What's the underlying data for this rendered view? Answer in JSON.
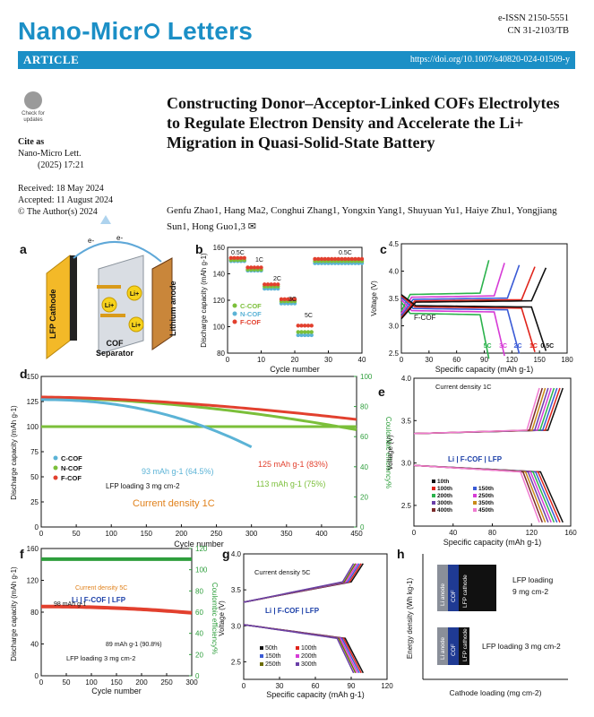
{
  "header": {
    "journal": "Nano-Micr",
    "journal_o": "o",
    "journal_rest": " Letters",
    "issn": "e-ISSN 2150-5551",
    "cn": "CN 31-2103/TB",
    "article": "ARTICLE",
    "doi": "https://doi.org/10.1007/s40820-024-01509-y"
  },
  "sidebar": {
    "check_line1": "Check for",
    "check_line2": "updates",
    "cite_label": "Cite as",
    "cite_journal": "Nano-Micro Lett.",
    "cite_year": "(2025) 17:21",
    "received": "Received: 18 May 2024",
    "accepted": "Accepted: 11 August 2024",
    "copyright": "© The Author(s) 2024"
  },
  "article": {
    "title": "Constructing Donor–Acceptor-Linked COFs Electrolytes to Regulate Electron Density and Accelerate the Li+ Migration in Quasi-Solid-State Battery",
    "authors": "Genfu Zhao1, Hang Ma2, Conghui Zhang1, Yongxin Yang1, Shuyuan Yu1, Haiye Zhu1, Yongjiang Sun1, Hong Guo1,3 ✉"
  },
  "colors": {
    "brand": "#1b8fc6",
    "c_cof": "#5bb3d6",
    "n_cof": "#7bbf3a",
    "f_cof": "#e2402e",
    "green": "#2e9e3c"
  },
  "panels": {
    "a": {
      "letter": "a",
      "cathode": "LFP Cathode",
      "anode": "Lithium anode",
      "separator1": "COF",
      "separator2": "Separator",
      "li": "Li+",
      "e": "e-"
    },
    "b": {
      "letter": "b",
      "ylabel": "Discharge capacity (mAh g-1)",
      "xlabel": "Cycle number",
      "rates": [
        "0.5C",
        "1C",
        "2C",
        "3C",
        "5C",
        "0.5C"
      ],
      "legend": [
        "C-COF",
        "N-COF",
        "F-COF"
      ],
      "yticks": [
        "80",
        "100",
        "120",
        "140",
        "160"
      ],
      "xticks": [
        "0",
        "10",
        "20",
        "30",
        "40"
      ]
    },
    "c": {
      "letter": "c",
      "ylabel": "Voltage (V)",
      "xlabel": "Specific capacity (mAh g-1)",
      "label": "F-COF",
      "rates": [
        "5C",
        "3C",
        "2C",
        "1C",
        "0.5C"
      ],
      "yticks": [
        "2.5",
        "3.0",
        "3.5",
        "4.0",
        "4.5"
      ],
      "xticks": [
        "0",
        "30",
        "60",
        "90",
        "120",
        "150",
        "180"
      ]
    },
    "d": {
      "letter": "d",
      "ylabel": "Discharge capacity (mAh g-1)",
      "ylabel2": "Coulombic efficiency%",
      "xlabel": "Cycle number",
      "legend": [
        "C-COF",
        "N-COF",
        "F-COF"
      ],
      "note1": "LFP loading 3 mg cm-2",
      "note2": "Current density 1C",
      "ann_c": "93 mAh g-1 (64.5%)",
      "ann_f": "125 mAh g-1 (83%)",
      "ann_n": "113 mAh g-1 (75%)",
      "yticks": [
        "0",
        "25",
        "50",
        "75",
        "100",
        "125",
        "150"
      ],
      "y2ticks": [
        "0",
        "20",
        "40",
        "60",
        "80",
        "100"
      ],
      "xticks": [
        "0",
        "50",
        "100",
        "150",
        "200",
        "250",
        "300",
        "350",
        "400",
        "450"
      ]
    },
    "e": {
      "letter": "e",
      "ylabel": "Voltage (V)",
      "xlabel": "Specific capacity (mAh g-1)",
      "title": "Current density 1C",
      "cell": "Li | F-COF | LFP",
      "legend": [
        "10th",
        "100th",
        "150th",
        "200th",
        "250th",
        "300th",
        "350th",
        "400th",
        "450th"
      ],
      "yticks": [
        "2.5",
        "3.0",
        "3.5",
        "4.0"
      ],
      "xticks": [
        "0",
        "40",
        "80",
        "120",
        "160"
      ]
    },
    "f": {
      "letter": "f",
      "ylabel": "Discharge capacity (mAh g-1)",
      "ylabel2": "Coulombic efficiency%",
      "xlabel": "Cycle number",
      "label": "Current density 5C",
      "cell": "Li | F-COF | LFP",
      "ann1": "98 mAh g-1",
      "ann2": "89 mAh g-1 (90.8%)",
      "note": "LFP loading 3 mg cm-2",
      "yticks": [
        "0",
        "40",
        "80",
        "120",
        "160"
      ],
      "y2ticks": [
        "0",
        "20",
        "40",
        "60",
        "80",
        "100",
        "120"
      ],
      "xticks": [
        "0",
        "50",
        "100",
        "150",
        "200",
        "250",
        "300"
      ]
    },
    "g": {
      "letter": "g",
      "ylabel": "Voltage (V)",
      "xlabel": "Specific capacity (mAh g-1)",
      "title": "Current density 5C",
      "cell": "Li | F-COF | LFP",
      "legend": [
        "50th",
        "100th",
        "150th",
        "200th",
        "250th",
        "300th"
      ],
      "yticks": [
        "2.5",
        "3.0",
        "3.5",
        "4.0"
      ],
      "xticks": [
        "0",
        "30",
        "60",
        "90",
        "120"
      ]
    },
    "h": {
      "letter": "h",
      "ylabel": "Energy density (Wh kg-1)",
      "xlabel": "Cathode loading (mg cm-2)",
      "top": "LFP loading 9 mg cm-2",
      "bottom": "LFP loading 3 mg cm-2",
      "li": "Li anode",
      "cof": "COF",
      "lfp": "LFP cathode"
    }
  }
}
